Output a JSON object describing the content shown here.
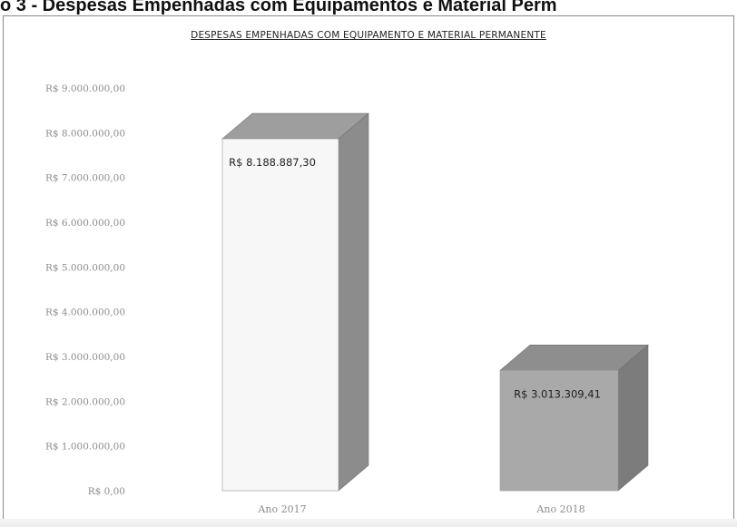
{
  "page": {
    "heading": "o 3 - Despesas Empenhadas com Equipamentos e Material Perm"
  },
  "chart_data": {
    "type": "bar",
    "title": "DESPESAS EMPENHADAS COM EQUIPAMENTO E MATERIAL PERMANENTE",
    "categories": [
      "Ano 2017",
      "Ano 2018"
    ],
    "values": [
      8188887.3,
      3013309.41
    ],
    "data_labels": [
      "R$ 8.188.887,30",
      "R$ 3.013.309,41"
    ],
    "y_ticks": [
      {
        "value": 9000000,
        "label": "R$ 9.000.000,00"
      },
      {
        "value": 8000000,
        "label": "R$ 8.000.000,00"
      },
      {
        "value": 7000000,
        "label": "R$ 7.000.000,00"
      },
      {
        "value": 6000000,
        "label": "R$ 6.000.000,00"
      },
      {
        "value": 5000000,
        "label": "R$ 5.000.000,00"
      },
      {
        "value": 4000000,
        "label": "R$ 4.000.000,00"
      },
      {
        "value": 3000000,
        "label": "R$ 3.000.000,00"
      },
      {
        "value": 2000000,
        "label": "R$ 2.000.000,00"
      },
      {
        "value": 1000000,
        "label": "R$ 1.000.000,00"
      },
      {
        "value": 0,
        "label": "R$ 0,00"
      }
    ],
    "ylim": [
      0,
      9000000
    ],
    "bar_style": "3d",
    "grid": false,
    "legend": "none",
    "colors": {
      "bar_2017_front": "#f7f7f7",
      "bar_2017_side": "#8c8c8c",
      "bar_2017_top": "#9e9e9e",
      "bar_2018_front": "#a9a9a9",
      "bar_2018_side": "#7c7c7c",
      "bar_2018_top": "#8e8e8e",
      "axis_text": "#8c8c8c"
    }
  }
}
